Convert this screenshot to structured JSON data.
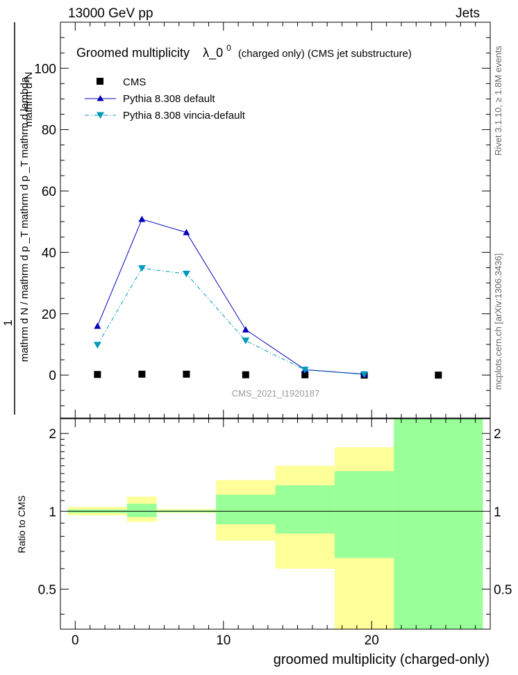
{
  "header": {
    "left": "13000 GeV pp",
    "right": "Jets"
  },
  "side_labels": {
    "rivet": "Rivet 3.1.10, ≥ 1.8M events",
    "mcplots": "mcplots.cern.ch [arXiv:1306.3436]"
  },
  "chart_data": [
    {
      "type": "line",
      "title_main": "Groomed multiplicity",
      "title_lambda": "λ_0",
      "title_sup": "0",
      "title_tail": "(charged only) (CMS jet substructure)",
      "watermark": "CMS_2021_I1920187",
      "ylabel_numerator": "mathrm d²N",
      "ylabel_prefix": "1",
      "ylabel_denominator": "mathrm d N / mathrm d p _T mathrm d p _T mathrm d lambda",
      "xlim": [
        -1,
        28
      ],
      "ylim": [
        -14,
        115
      ],
      "y_ticks": [
        0,
        20,
        40,
        60,
        80,
        100
      ],
      "legend_position": "top-left",
      "series": [
        {
          "name": "CMS",
          "marker": "square",
          "color": "#000000",
          "x": [
            1.5,
            4.5,
            7.5,
            11.5,
            15.5,
            19.5,
            24.5
          ],
          "y": [
            0.2,
            0.3,
            0.3,
            0.1,
            0.1,
            0.0,
            0.0
          ]
        },
        {
          "name": "Pythia 8.308 default",
          "marker": "triangle-up",
          "style": "solid",
          "color": "#0000bb",
          "x": [
            1.5,
            4.5,
            7.5,
            11.5,
            15.5,
            19.5
          ],
          "y": [
            16.0,
            50.8,
            46.5,
            14.8,
            1.8,
            0.3
          ]
        },
        {
          "name": "Pythia 8.308 vincia-default",
          "marker": "triangle-down",
          "style": "dash-dot",
          "color": "#0099bb",
          "x": [
            1.5,
            4.5,
            7.5,
            11.5,
            15.5,
            19.5
          ],
          "y": [
            9.8,
            34.8,
            33.0,
            11.2,
            1.7,
            0.2
          ]
        }
      ]
    },
    {
      "type": "band",
      "ylabel": "Ratio to CMS",
      "xlabel": "groomed multiplicity (charged-only)",
      "xlim": [
        -1,
        28
      ],
      "ylim": [
        0.35,
        2.28
      ],
      "log_y": true,
      "y_ticks": [
        0.5,
        1,
        2
      ],
      "y_tick_labels": [
        "0.5",
        "1",
        "2"
      ],
      "x_ticks": [
        0,
        10,
        20
      ],
      "reference_line": 1,
      "bins": [
        {
          "x0": -0.5,
          "x1": 3.5,
          "inner": [
            0.985,
            1.015
          ],
          "outer": [
            0.965,
            1.04
          ]
        },
        {
          "x0": 3.5,
          "x1": 5.5,
          "inner": [
            0.95,
            1.07
          ],
          "outer": [
            0.91,
            1.14
          ]
        },
        {
          "x0": 5.5,
          "x1": 9.5,
          "inner": [
            0.99,
            1.01
          ],
          "outer": [
            0.985,
            1.02
          ]
        },
        {
          "x0": 9.5,
          "x1": 13.5,
          "inner": [
            0.89,
            1.16
          ],
          "outer": [
            0.77,
            1.32
          ]
        },
        {
          "x0": 13.5,
          "x1": 17.5,
          "inner": [
            0.82,
            1.26
          ],
          "outer": [
            0.6,
            1.5
          ]
        },
        {
          "x0": 17.5,
          "x1": 21.5,
          "inner": [
            0.66,
            1.43
          ],
          "outer": [
            0.35,
            1.77
          ]
        },
        {
          "x0": 21.5,
          "x1": 27.5,
          "inner": [
            0.35,
            2.28
          ],
          "outer": [
            0.35,
            2.28
          ]
        }
      ],
      "colors": {
        "inner": "#99ff99",
        "outer": "#ffff99"
      }
    }
  ]
}
